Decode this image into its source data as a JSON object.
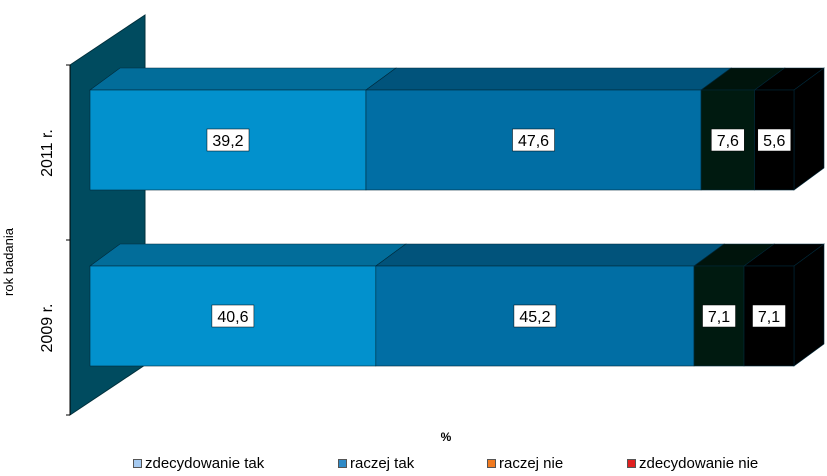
{
  "chart_data": {
    "type": "bar",
    "orientation": "horizontal",
    "stacked": true,
    "three_d": true,
    "categories": [
      "2011 r.",
      "2009 r."
    ],
    "series": [
      {
        "name": "zdecydowanie tak",
        "values": [
          39.2,
          40.6
        ],
        "color": "#0291CD"
      },
      {
        "name": "raczej tak",
        "values": [
          47.6,
          45.2
        ],
        "color": "#016EA4"
      },
      {
        "name": "raczej nie",
        "values": [
          7.6,
          7.1
        ],
        "color": "#001A10"
      },
      {
        "name": "zdecydowanie nie",
        "values": [
          5.6,
          7.1
        ],
        "color": "#000000"
      }
    ],
    "legend_swatch_colors": [
      "#A6CAF0",
      "#2E8AC7",
      "#F07A20",
      "#E02020"
    ],
    "xlabel": "%",
    "ylabel": "rok badania",
    "xlim": [
      0,
      100
    ],
    "legend_position": "bottom",
    "grid": false
  },
  "colors": {
    "wall": "#004B5F",
    "wall_edge": "#00303C"
  }
}
